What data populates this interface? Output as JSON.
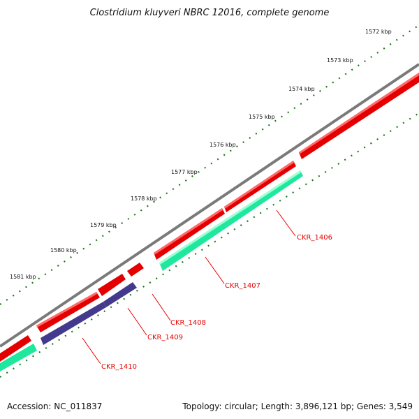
{
  "title": "Clostridium kluyveri NBRC 12016, complete genome",
  "footer": {
    "accession": "Accession: NC_011837",
    "stats": "Topology: circular; Length: 3,896,121 bp; Genes: 3,549"
  },
  "scale_labels": [
    "1572 kbp",
    "1573 kbp",
    "1574 kbp",
    "1575 kbp",
    "1576 kbp",
    "1577 kbp",
    "1578 kbp",
    "1579 kbp",
    "1580 kbp",
    "1581 kbp"
  ],
  "gene_labels": [
    "CKR_1406",
    "CKR_1407",
    "CKR_1408",
    "CKR_1409",
    "CKR_1410"
  ],
  "colors": {
    "backbone": "#7a7a7a",
    "forward_gene": "#ee0000",
    "reverse_gene": "#22f0a8",
    "reverse_gene_alt": "#4a3f96",
    "tick": "#1a7a1a",
    "label": "#e60000"
  }
}
